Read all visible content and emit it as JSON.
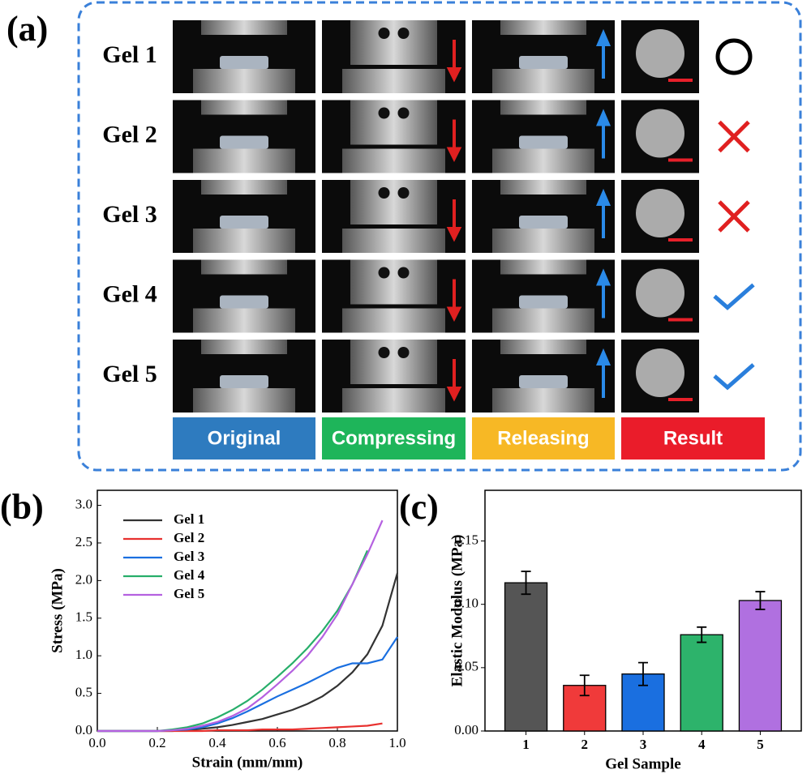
{
  "panel_a": {
    "label": "(a)",
    "rows": [
      "Gel 1",
      "Gel 2",
      "Gel 3",
      "Gel 4",
      "Gel 5"
    ],
    "stages": [
      "Original",
      "Compressing",
      "Releasing",
      "Result"
    ]
  },
  "chart_data": [
    {
      "type": "line",
      "panel_label": "(b)",
      "x_label": "Strain (mm/mm)",
      "y_label": "Stress (MPa)",
      "x": [
        0,
        0.05,
        0.1,
        0.15,
        0.2,
        0.25,
        0.3,
        0.35,
        0.4,
        0.45,
        0.5,
        0.55,
        0.6,
        0.65,
        0.7,
        0.75,
        0.8,
        0.85,
        0.9,
        0.95,
        1.0
      ],
      "xlim": [
        0,
        1
      ],
      "ylim": [
        0,
        3.2
      ],
      "xticks": [
        {
          "value": 0,
          "label": "0.0"
        },
        {
          "value": 0.2,
          "label": "0.2"
        },
        {
          "value": 0.4,
          "label": "0.4"
        },
        {
          "value": 0.6,
          "label": "0.6"
        },
        {
          "value": 0.8,
          "label": "0.8"
        },
        {
          "value": 1,
          "label": "1.0"
        }
      ],
      "yticks": [
        {
          "value": 0,
          "label": "0.0"
        },
        {
          "value": 0.5,
          "label": "0.5"
        },
        {
          "value": 1,
          "label": "1.0"
        },
        {
          "value": 1.5,
          "label": "1.5"
        },
        {
          "value": 2,
          "label": "2.0"
        },
        {
          "value": 2.5,
          "label": "2.5"
        },
        {
          "value": 3,
          "label": "3.0"
        }
      ],
      "legend": "upper-left",
      "series": [
        {
          "name": "Gel 1",
          "color": "#333333",
          "values": [
            0,
            0,
            0,
            0,
            0,
            0,
            0.01,
            0.03,
            0.05,
            0.08,
            0.12,
            0.16,
            0.22,
            0.28,
            0.36,
            0.46,
            0.6,
            0.78,
            1.02,
            1.4,
            2.1
          ]
        },
        {
          "name": "Gel 2",
          "color": "#e8312f",
          "values": [
            0,
            0,
            0,
            0,
            0,
            0,
            0,
            0,
            0.01,
            0.01,
            0.01,
            0.02,
            0.02,
            0.02,
            0.03,
            0.04,
            0.05,
            0.06,
            0.07,
            0.1,
            null
          ]
        },
        {
          "name": "Gel 3",
          "color": "#1a6fe0",
          "values": [
            0,
            0,
            0,
            0,
            0,
            0.01,
            0.02,
            0.05,
            0.1,
            0.17,
            0.26,
            0.36,
            0.46,
            0.55,
            0.64,
            0.74,
            0.84,
            0.9,
            0.9,
            0.95,
            1.25
          ]
        },
        {
          "name": "Gel 4",
          "color": "#27ae6a",
          "values": [
            0,
            0,
            0,
            0,
            0,
            0.02,
            0.05,
            0.1,
            0.18,
            0.28,
            0.4,
            0.55,
            0.72,
            0.9,
            1.1,
            1.33,
            1.6,
            1.95,
            2.4,
            null,
            null
          ]
        },
        {
          "name": "Gel 5",
          "color": "#b561e0",
          "values": [
            0,
            0,
            0,
            0,
            0,
            0.01,
            0.03,
            0.07,
            0.12,
            0.2,
            0.3,
            0.45,
            0.62,
            0.8,
            1.0,
            1.25,
            1.55,
            1.95,
            2.35,
            2.8,
            null
          ]
        }
      ]
    },
    {
      "type": "bar",
      "panel_label": "(c)",
      "x_label": "Gel Sample",
      "y_label": "Elastic Modulus (MPa)",
      "categories": [
        "1",
        "2",
        "3",
        "4",
        "5"
      ],
      "values": [
        0.117,
        0.036,
        0.045,
        0.076,
        0.103
      ],
      "errors": [
        0.009,
        0.008,
        0.009,
        0.006,
        0.007
      ],
      "colors": [
        "#555555",
        "#f03a3a",
        "#1a6fe0",
        "#2db36b",
        "#b070e0"
      ],
      "ylim": [
        0,
        0.19
      ],
      "yticks": [
        {
          "value": 0,
          "label": "0.00"
        },
        {
          "value": 0.05,
          "label": "0.05"
        },
        {
          "value": 0.1,
          "label": "0.10"
        },
        {
          "value": 0.15,
          "label": "0.15"
        }
      ]
    }
  ]
}
